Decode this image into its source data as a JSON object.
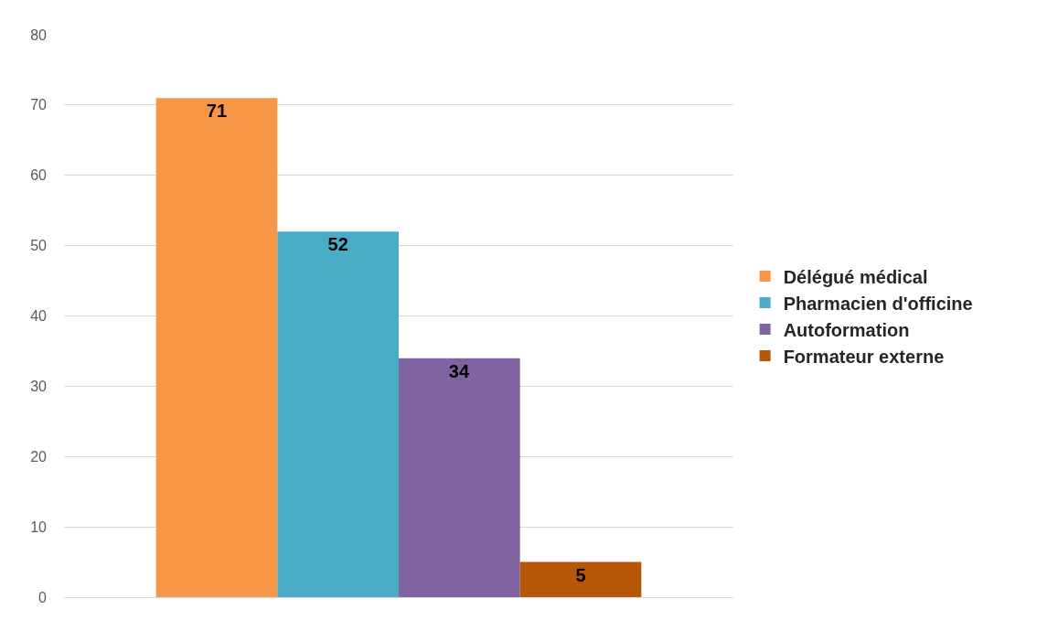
{
  "chart_data": {
    "type": "bar",
    "categories": [
      null
    ],
    "series": [
      {
        "name": "Délégué médical",
        "color": "#f79646",
        "values": [
          71
        ]
      },
      {
        "name": "Pharmacien d'officine",
        "color": "#4bacc6",
        "values": [
          52
        ]
      },
      {
        "name": "Autoformation",
        "color": "#8064a2",
        "values": [
          34
        ]
      },
      {
        "name": "Formateur externe",
        "color": "#b65708",
        "values": [
          5
        ]
      }
    ],
    "ylim": [
      0,
      80
    ],
    "yticks": [
      0,
      10,
      20,
      30,
      40,
      50,
      60,
      70,
      80
    ],
    "grid": "y",
    "legend": "right",
    "data_labels": true
  }
}
